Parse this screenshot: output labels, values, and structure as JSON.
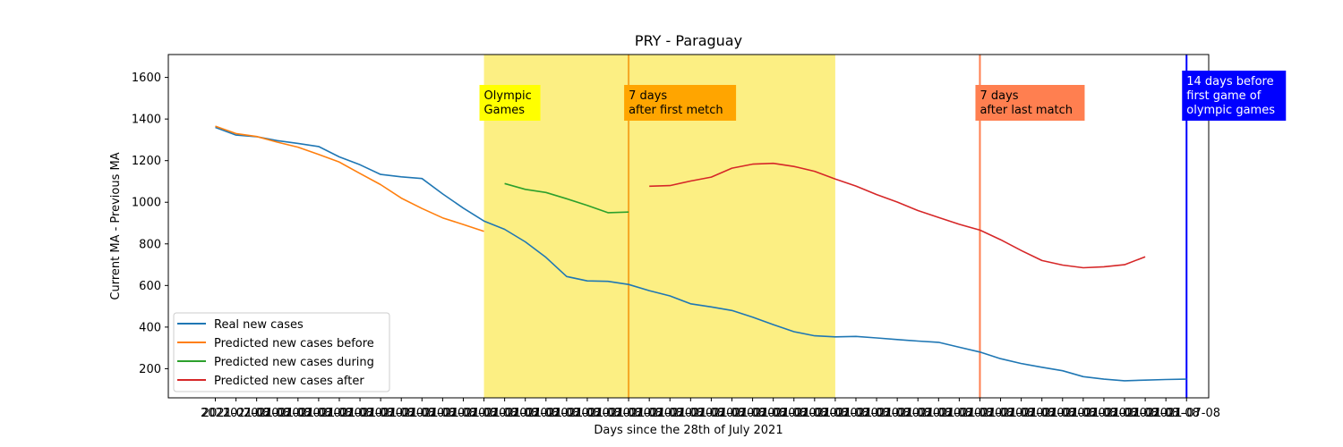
{
  "chart_data": {
    "type": "line",
    "title": "PRY - Paraguay",
    "xlabel": "Days since the 28th of July 2021",
    "ylabel": "Current MA - Previous MA",
    "ylim": [
      60,
      1710
    ],
    "yticks": [
      200,
      400,
      600,
      800,
      1000,
      1200,
      1400,
      1600
    ],
    "x_range": [
      -2,
      48
    ],
    "x_tick_note": "x tick labels are overlapping dates; legible fragments include 2021-07... and ...-07-08",
    "x_tick_first": "2021",
    "x_tick_last": "2021-07-08",
    "legend_position": "lower-left",
    "grid": false,
    "series": [
      {
        "name": "Real new cases",
        "color": "#1f77b4",
        "x": [
          0,
          1,
          2,
          3,
          4,
          5,
          6,
          7,
          8,
          9,
          10,
          11,
          12,
          13,
          14,
          15,
          16,
          17,
          18,
          19,
          20,
          21,
          22,
          23,
          24,
          25,
          26,
          27,
          28,
          29,
          30,
          31,
          32,
          33,
          34,
          35,
          36,
          37,
          38,
          39,
          40,
          41,
          42,
          43,
          44,
          45,
          46,
          47
        ],
        "values": [
          1360,
          1323,
          1315,
          1296,
          1283,
          1268,
          1218,
          1180,
          1134,
          1122,
          1114,
          1040,
          972,
          910,
          870,
          810,
          735,
          643,
          622,
          620,
          605,
          575,
          550,
          512,
          497,
          480,
          448,
          412,
          378,
          358,
          353,
          355,
          348,
          340,
          333,
          327,
          303,
          280,
          248,
          225,
          207,
          190,
          162,
          150,
          142,
          145,
          148,
          150
        ]
      },
      {
        "name": "Predicted new cases before",
        "color": "#ff7f0e",
        "x": [
          0,
          1,
          2,
          3,
          4,
          5,
          6,
          7,
          8,
          9,
          10,
          11,
          12,
          13
        ],
        "values": [
          1366,
          1330,
          1316,
          1289,
          1265,
          1230,
          1193,
          1138,
          1085,
          1020,
          970,
          925,
          893,
          860
        ]
      },
      {
        "name": "Predicted new cases during",
        "color": "#2ca02c",
        "x": [
          14,
          15,
          16,
          17,
          18,
          19,
          20
        ],
        "values": [
          1090,
          1062,
          1047,
          1017,
          985,
          950,
          953
        ]
      },
      {
        "name": "Predicted new cases after",
        "color": "#d62728",
        "x": [
          21,
          22,
          23,
          24,
          25,
          26,
          27,
          28,
          29,
          30,
          31,
          32,
          33,
          34,
          35,
          36,
          37,
          38,
          39,
          40,
          41,
          42,
          43,
          44,
          45
        ],
        "values": [
          1077,
          1080,
          1102,
          1121,
          1164,
          1183,
          1187,
          1172,
          1149,
          1112,
          1078,
          1037,
          1001,
          960,
          927,
          894,
          866,
          820,
          768,
          720,
          698,
          685,
          690,
          700,
          738
        ]
      }
    ],
    "shaded_regions": [
      {
        "x_start": 13,
        "x_end": 30,
        "color": "#fcef83"
      }
    ],
    "vertical_lines": [
      {
        "x": 20,
        "color": "#f5a623"
      },
      {
        "x": 37,
        "color": "#ff7f50"
      },
      {
        "x": 47,
        "color": "#0000ff"
      }
    ],
    "annotations": [
      {
        "lines": [
          "Olympic",
          "Games"
        ],
        "x": 13,
        "bg": "#ffff00",
        "fg": "#000000"
      },
      {
        "lines": [
          "7 days",
          "after first metch"
        ],
        "x": 20,
        "bg": "#ffa500",
        "fg": "#000000"
      },
      {
        "lines": [
          "7 days",
          "after last match"
        ],
        "x": 37,
        "bg": "#ff7f50",
        "fg": "#000000"
      },
      {
        "lines": [
          "14 days before",
          "first game of",
          "olympic games"
        ],
        "x": 47,
        "bg": "#0000ff",
        "fg": "#ffffff"
      }
    ]
  }
}
